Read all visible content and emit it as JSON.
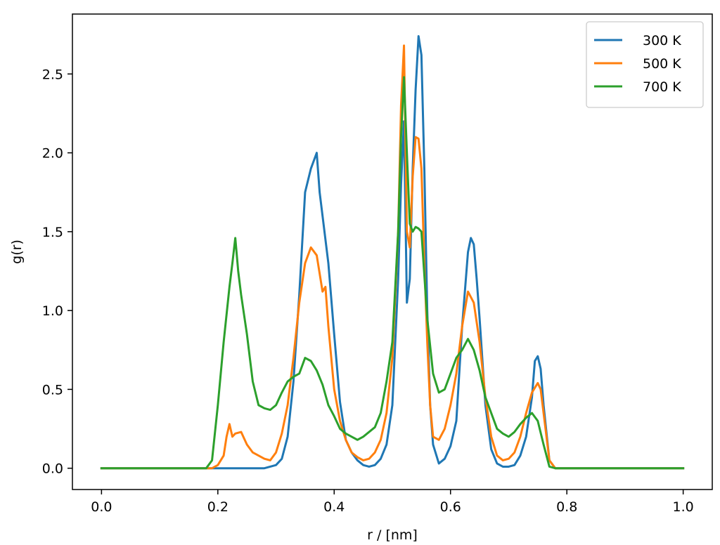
{
  "chart_data": {
    "type": "line",
    "title": "",
    "xlabel": "r / [nm]",
    "ylabel": "g(r)",
    "xlim": [
      -0.05,
      1.05
    ],
    "ylim": [
      -0.135,
      2.88
    ],
    "xticks": [
      0.0,
      0.2,
      0.4,
      0.6,
      0.8,
      1.0
    ],
    "xtick_labels": [
      "0.0",
      "0.2",
      "0.4",
      "0.6",
      "0.8",
      "1.0"
    ],
    "yticks": [
      0.0,
      0.5,
      1.0,
      1.5,
      2.0,
      2.5
    ],
    "ytick_labels": [
      "0.0",
      "0.5",
      "1.0",
      "1.5",
      "2.0",
      "2.5"
    ],
    "grid": false,
    "legend_position": "top-right",
    "series": [
      {
        "name": "300 K",
        "color": "#1f77b4",
        "x": [
          0.0,
          0.25,
          0.28,
          0.29,
          0.3,
          0.31,
          0.32,
          0.33,
          0.34,
          0.35,
          0.36,
          0.37,
          0.375,
          0.38,
          0.39,
          0.4,
          0.41,
          0.42,
          0.43,
          0.44,
          0.45,
          0.46,
          0.47,
          0.48,
          0.49,
          0.5,
          0.51,
          0.515,
          0.52,
          0.525,
          0.53,
          0.535,
          0.54,
          0.545,
          0.55,
          0.555,
          0.56,
          0.565,
          0.57,
          0.58,
          0.59,
          0.6,
          0.61,
          0.62,
          0.63,
          0.635,
          0.64,
          0.645,
          0.65,
          0.66,
          0.67,
          0.68,
          0.69,
          0.7,
          0.71,
          0.72,
          0.73,
          0.74,
          0.745,
          0.75,
          0.755,
          0.76,
          0.77,
          0.78,
          1.0
        ],
        "y": [
          0.0,
          0.0,
          0.0,
          0.01,
          0.02,
          0.06,
          0.2,
          0.55,
          1.1,
          1.75,
          1.9,
          2.0,
          1.75,
          1.6,
          1.3,
          0.85,
          0.42,
          0.18,
          0.1,
          0.05,
          0.02,
          0.01,
          0.02,
          0.06,
          0.15,
          0.4,
          1.2,
          1.8,
          2.2,
          1.05,
          1.2,
          1.9,
          2.4,
          2.74,
          2.62,
          1.9,
          1.0,
          0.4,
          0.15,
          0.03,
          0.06,
          0.14,
          0.3,
          0.9,
          1.37,
          1.46,
          1.42,
          1.2,
          0.95,
          0.4,
          0.12,
          0.03,
          0.01,
          0.01,
          0.02,
          0.08,
          0.2,
          0.45,
          0.68,
          0.71,
          0.63,
          0.4,
          0.05,
          0.0,
          0.0
        ]
      },
      {
        "name": "500 K",
        "color": "#ff7f0e",
        "x": [
          0.0,
          0.19,
          0.2,
          0.21,
          0.215,
          0.22,
          0.225,
          0.23,
          0.24,
          0.25,
          0.26,
          0.27,
          0.28,
          0.29,
          0.3,
          0.31,
          0.32,
          0.33,
          0.34,
          0.35,
          0.36,
          0.37,
          0.38,
          0.385,
          0.39,
          0.4,
          0.41,
          0.42,
          0.43,
          0.44,
          0.45,
          0.46,
          0.47,
          0.48,
          0.49,
          0.5,
          0.51,
          0.515,
          0.52,
          0.525,
          0.53,
          0.535,
          0.54,
          0.545,
          0.55,
          0.555,
          0.56,
          0.565,
          0.57,
          0.58,
          0.59,
          0.6,
          0.61,
          0.62,
          0.63,
          0.64,
          0.65,
          0.66,
          0.67,
          0.68,
          0.69,
          0.7,
          0.71,
          0.72,
          0.73,
          0.74,
          0.75,
          0.755,
          0.76,
          0.77,
          0.78,
          1.0
        ],
        "y": [
          0.0,
          0.0,
          0.02,
          0.08,
          0.2,
          0.28,
          0.2,
          0.22,
          0.23,
          0.15,
          0.1,
          0.08,
          0.06,
          0.05,
          0.1,
          0.22,
          0.4,
          0.7,
          1.05,
          1.3,
          1.4,
          1.35,
          1.12,
          1.15,
          0.9,
          0.5,
          0.3,
          0.18,
          0.1,
          0.07,
          0.05,
          0.06,
          0.1,
          0.18,
          0.35,
          0.7,
          1.5,
          2.3,
          2.68,
          1.5,
          1.4,
          1.85,
          2.1,
          2.09,
          1.9,
          1.3,
          0.8,
          0.4,
          0.2,
          0.18,
          0.25,
          0.4,
          0.6,
          0.9,
          1.12,
          1.05,
          0.8,
          0.45,
          0.2,
          0.08,
          0.05,
          0.06,
          0.1,
          0.2,
          0.35,
          0.48,
          0.54,
          0.5,
          0.35,
          0.05,
          0.0,
          0.0
        ]
      },
      {
        "name": "700 K",
        "color": "#2ca02c",
        "x": [
          0.0,
          0.18,
          0.19,
          0.2,
          0.21,
          0.22,
          0.225,
          0.23,
          0.235,
          0.24,
          0.25,
          0.26,
          0.27,
          0.28,
          0.29,
          0.3,
          0.31,
          0.32,
          0.33,
          0.34,
          0.35,
          0.36,
          0.37,
          0.38,
          0.39,
          0.4,
          0.41,
          0.42,
          0.43,
          0.44,
          0.45,
          0.46,
          0.47,
          0.48,
          0.49,
          0.5,
          0.51,
          0.515,
          0.52,
          0.525,
          0.53,
          0.535,
          0.54,
          0.545,
          0.55,
          0.56,
          0.57,
          0.58,
          0.59,
          0.6,
          0.61,
          0.62,
          0.63,
          0.64,
          0.65,
          0.66,
          0.67,
          0.68,
          0.69,
          0.7,
          0.71,
          0.72,
          0.73,
          0.74,
          0.75,
          0.76,
          0.77,
          0.78,
          1.0
        ],
        "y": [
          0.0,
          0.0,
          0.05,
          0.4,
          0.8,
          1.15,
          1.3,
          1.46,
          1.25,
          1.1,
          0.85,
          0.55,
          0.4,
          0.38,
          0.37,
          0.4,
          0.48,
          0.55,
          0.58,
          0.6,
          0.7,
          0.68,
          0.62,
          0.53,
          0.4,
          0.33,
          0.25,
          0.22,
          0.2,
          0.18,
          0.2,
          0.23,
          0.26,
          0.35,
          0.55,
          0.8,
          1.5,
          2.1,
          2.48,
          2.0,
          1.55,
          1.5,
          1.53,
          1.52,
          1.5,
          0.95,
          0.6,
          0.48,
          0.5,
          0.6,
          0.7,
          0.75,
          0.82,
          0.75,
          0.62,
          0.45,
          0.35,
          0.25,
          0.22,
          0.2,
          0.23,
          0.28,
          0.32,
          0.35,
          0.3,
          0.15,
          0.01,
          0.0,
          0.0
        ]
      }
    ]
  }
}
